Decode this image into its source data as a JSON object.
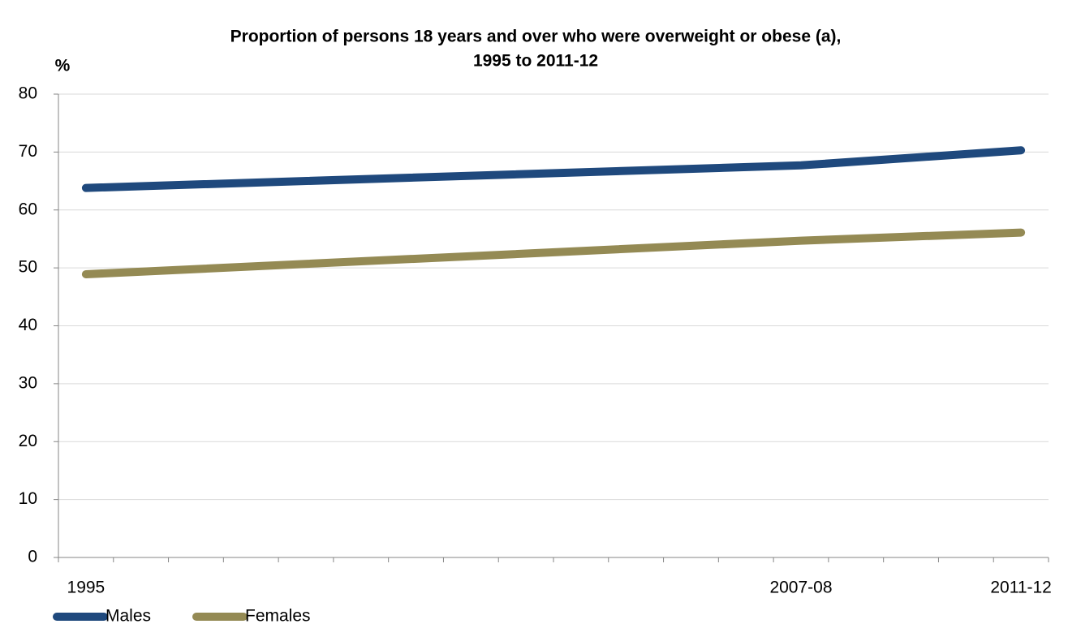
{
  "chart_data": {
    "type": "line",
    "title": [
      "Proportion of persons 18 years and over who were overweight or obese (a),",
      "1995 to 2011-12"
    ],
    "y_label": "%",
    "x": [
      1995,
      2008,
      2012
    ],
    "xlim": [
      1994.5,
      2012.5
    ],
    "xticks": [
      {
        "value": 1995,
        "label": "1995"
      },
      {
        "value": 2008,
        "label": "2007-08"
      },
      {
        "value": 2012,
        "label": "2011-12"
      }
    ],
    "ylim": [
      0,
      80
    ],
    "yticks": [
      0,
      10,
      20,
      30,
      40,
      50,
      60,
      70,
      80
    ],
    "grid": true,
    "legend": "bottom-left",
    "series": [
      {
        "name": "Males",
        "color": "#1f497d",
        "values": [
          63.8,
          67.7,
          70.3
        ]
      },
      {
        "name": "Females",
        "color": "#948a54",
        "values": [
          48.9,
          54.7,
          56.1
        ]
      }
    ]
  }
}
